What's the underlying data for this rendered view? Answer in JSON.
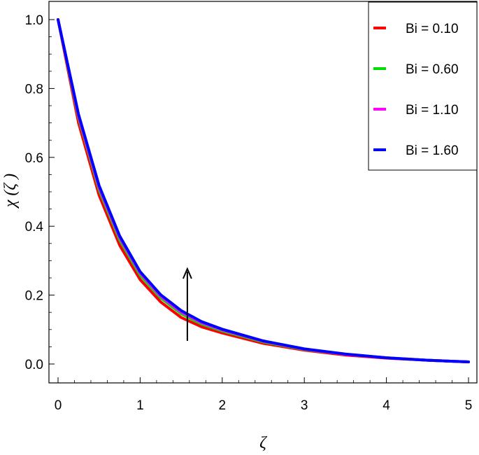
{
  "chart_data": {
    "type": "line",
    "title": "",
    "xlabel": "ζ",
    "ylabel": "χ (ζ )",
    "xlim": [
      0,
      5
    ],
    "ylim": [
      0,
      1
    ],
    "x_ticks": [
      "0",
      "1",
      "2",
      "3",
      "4",
      "5"
    ],
    "y_ticks": [
      "0.0",
      "0.2",
      "0.4",
      "0.6",
      "0.8",
      "1.0"
    ],
    "legend_position": "top-right",
    "annotation": "upward arrow near ζ = 1.6 indicating increasing Bi",
    "x": [
      0,
      0.25,
      0.5,
      0.75,
      1.0,
      1.25,
      1.5,
      1.75,
      2.0,
      2.5,
      3.0,
      3.5,
      4.0,
      4.5,
      5.0
    ],
    "series": [
      {
        "name": "Bi = 0.10",
        "color": "#ff0000",
        "values": [
          1.0,
          0.7,
          0.49,
          0.345,
          0.245,
          0.18,
          0.135,
          0.108,
          0.09,
          0.06,
          0.04,
          0.026,
          0.017,
          0.011,
          0.006
        ]
      },
      {
        "name": "Bi = 0.60",
        "color": "#00dd00",
        "values": [
          1.0,
          0.715,
          0.505,
          0.36,
          0.258,
          0.192,
          0.146,
          0.116,
          0.096,
          0.064,
          0.042,
          0.028,
          0.018,
          0.011,
          0.006
        ]
      },
      {
        "name": "Bi = 1.10",
        "color": "#ff00ff",
        "values": [
          1.0,
          0.72,
          0.512,
          0.367,
          0.264,
          0.197,
          0.151,
          0.12,
          0.099,
          0.066,
          0.043,
          0.028,
          0.018,
          0.011,
          0.006
        ]
      },
      {
        "name": "Bi = 1.60",
        "color": "#0000ff",
        "values": [
          1.0,
          0.725,
          0.518,
          0.372,
          0.268,
          0.201,
          0.155,
          0.123,
          0.101,
          0.067,
          0.044,
          0.029,
          0.018,
          0.011,
          0.006
        ]
      }
    ]
  }
}
